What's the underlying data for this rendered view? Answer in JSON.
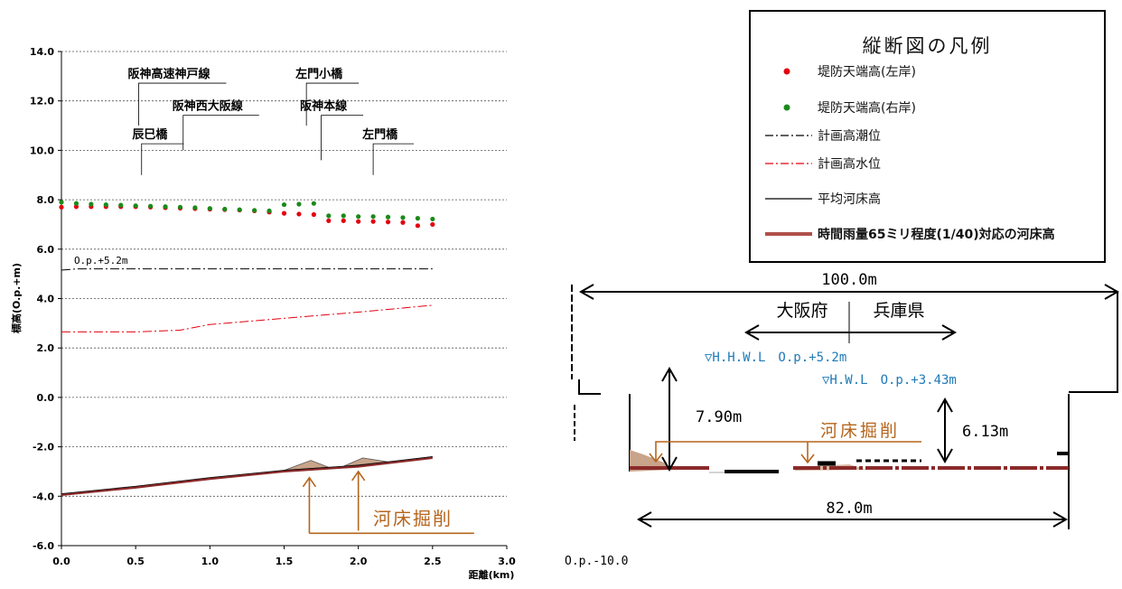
{
  "chart_data": [
    {
      "type": "line",
      "xlabel": "距離(km)",
      "ylabel": "標高(O.p.+m)",
      "xlim": [
        0,
        3
      ],
      "ylim": [
        -6,
        14
      ],
      "x_ticks": [
        "0.0",
        "0.5",
        "1.0",
        "1.5",
        "2.0",
        "2.5",
        "3.0"
      ],
      "y_ticks": [
        "14.0",
        "12.0",
        "10.0",
        "8.0",
        "6.0",
        "4.0",
        "2.0",
        "0.0",
        "-2.0",
        "-4.0",
        "-6.0"
      ],
      "grid": "horizontal dashed",
      "series": [
        {
          "name": "堤防天端高(左岸)",
          "kind": "scatter",
          "color": "#e3000f",
          "x": [
            0,
            0.1,
            0.2,
            0.3,
            0.4,
            0.5,
            0.6,
            0.7,
            0.8,
            0.9,
            1.0,
            1.1,
            1.2,
            1.3,
            1.4,
            1.5,
            1.6,
            1.7,
            1.8,
            1.9,
            2.0,
            2.1,
            2.2,
            2.3,
            2.4,
            2.5
          ],
          "y": [
            7.7,
            7.72,
            7.72,
            7.72,
            7.72,
            7.72,
            7.7,
            7.68,
            7.66,
            7.64,
            7.62,
            7.6,
            7.58,
            7.55,
            7.5,
            7.45,
            7.42,
            7.4,
            7.15,
            7.15,
            7.12,
            7.12,
            7.1,
            7.08,
            6.95,
            7.0
          ]
        },
        {
          "name": "堤防天端高(右岸)",
          "kind": "scatter",
          "color": "#1a8a1a",
          "x": [
            0,
            0.1,
            0.2,
            0.3,
            0.4,
            0.5,
            0.6,
            0.7,
            0.8,
            0.9,
            1.0,
            1.1,
            1.2,
            1.3,
            1.4,
            1.5,
            1.6,
            1.7,
            1.8,
            1.9,
            2.0,
            2.1,
            2.2,
            2.3,
            2.4,
            2.5
          ],
          "y": [
            7.9,
            7.85,
            7.82,
            7.8,
            7.78,
            7.76,
            7.74,
            7.72,
            7.7,
            7.68,
            7.65,
            7.62,
            7.6,
            7.57,
            7.55,
            7.8,
            7.82,
            7.85,
            7.35,
            7.35,
            7.32,
            7.32,
            7.3,
            7.28,
            7.25,
            7.22
          ]
        },
        {
          "name": "計画高潮位",
          "kind": "line",
          "style": "dashdot",
          "color": "#000000",
          "x": [
            0,
            0.1,
            2.5
          ],
          "y": [
            5.15,
            5.2,
            5.2
          ]
        },
        {
          "name": "計画高水位",
          "kind": "line",
          "style": "dashdot",
          "color": "#e3000f",
          "x": [
            0,
            0.5,
            0.8,
            1.0,
            1.5,
            2.0,
            2.5
          ],
          "y": [
            2.65,
            2.65,
            2.72,
            2.95,
            3.2,
            3.45,
            3.73
          ]
        },
        {
          "name": "平均河床高",
          "kind": "line",
          "style": "solid",
          "color": "#000000",
          "x": [
            0,
            0.5,
            1.0,
            1.5,
            2.0,
            2.5
          ],
          "y": [
            -3.9,
            -3.6,
            -3.25,
            -2.95,
            -2.75,
            -2.4
          ]
        },
        {
          "name": "時間雨量65ミリ程度(1/40)対応の河床高",
          "kind": "line",
          "style": "solid",
          "color": "#8b2a2a",
          "x": [
            0,
            0.5,
            1.0,
            1.5,
            2.0,
            2.5
          ],
          "y": [
            -3.95,
            -3.65,
            -3.3,
            -3.0,
            -2.8,
            -2.45
          ]
        }
      ],
      "excavation_mounds": [
        {
          "x0": 1.5,
          "xpeak": 1.68,
          "x1": 1.8,
          "ypeak": -2.55
        },
        {
          "x0": 1.9,
          "xpeak": 2.03,
          "x1": 2.2,
          "ypeak": -2.45
        }
      ],
      "annotations": [
        {
          "text": "阪神高速神戸線",
          "x": 0.52,
          "y": 12.9,
          "leader_x": 0.52,
          "leader_y": 11.0
        },
        {
          "text": "辰巳橋",
          "x": 0.55,
          "y": 10.45,
          "leader_x": 0.54,
          "leader_y": 9.0
        },
        {
          "text": "阪神西大阪線",
          "x": 0.82,
          "y": 11.6,
          "leader_x": 0.82,
          "leader_y": 10.0
        },
        {
          "text": "左門小橋",
          "x": 1.65,
          "y": 12.9,
          "leader_x": 1.65,
          "leader_y": 11.0
        },
        {
          "text": "阪神本線",
          "x": 1.68,
          "y": 11.6,
          "leader_x": 1.75,
          "leader_y": 9.6
        },
        {
          "text": "左門橋",
          "x": 2.1,
          "y": 10.45,
          "leader_x": 2.1,
          "leader_y": 9.0
        },
        {
          "text": "O.p.+5.2m",
          "x": 0.45,
          "y": 5.4
        }
      ],
      "callout": {
        "text": "河床掘削",
        "color": "#b5651d",
        "arrow_x": [
          1.67,
          2.0
        ],
        "box_y": -4.0
      }
    },
    {
      "type": "cross-section",
      "width_top_label": "100.0m",
      "width_bottom_label": "82.0m",
      "left_region": "大阪府",
      "right_region": "兵庫県",
      "hhwl_label": "▽H.H.W.L　O.p.+5.2m",
      "hwl_label": "▽H.W.L　O.p.+3.43m",
      "depth_left": "7.90m",
      "depth_right": "6.13m",
      "excavation_label": "河床掘削",
      "base_label": "O.p.-10.0",
      "label_color": "#1e7ab8",
      "excavation_color": "#b5651d"
    }
  ],
  "legend": {
    "title": "縦断図の凡例",
    "items": [
      {
        "label": "堤防天端高(左岸)",
        "kind": "dot",
        "color": "#e3000f"
      },
      {
        "label": "堤防天端高(右岸)",
        "kind": "dot",
        "color": "#1a8a1a"
      },
      {
        "label": "計画高潮位",
        "kind": "dashdot",
        "color": "#000000"
      },
      {
        "label": "計画高水位",
        "kind": "dashdot",
        "color": "#e3000f"
      },
      {
        "label": "平均河床高",
        "kind": "solid",
        "color": "#000000"
      },
      {
        "label": "時間雨量65ミリ程度(1/40)対応の河床高",
        "kind": "thick",
        "color": "#b0504a"
      }
    ]
  }
}
